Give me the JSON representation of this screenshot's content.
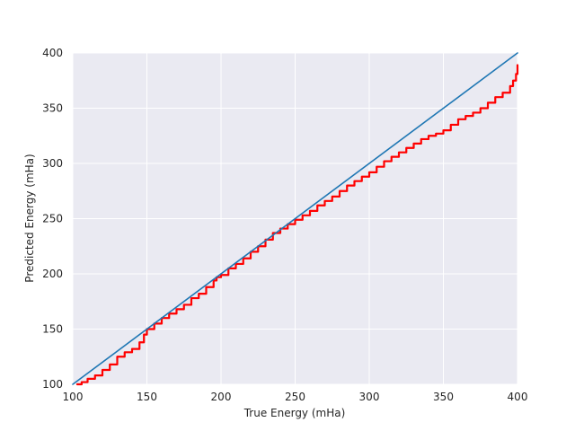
{
  "chart_data": {
    "type": "line",
    "title": "",
    "xlabel": "True Energy (mHa)",
    "ylabel": "Predicted Energy (mHa)",
    "xlim": [
      100,
      400
    ],
    "ylim": [
      100,
      400
    ],
    "xticks": [
      100,
      150,
      200,
      250,
      300,
      350,
      400
    ],
    "yticks": [
      100,
      150,
      200,
      250,
      300,
      350,
      400
    ],
    "grid": true,
    "background_color": "#eaeaf2",
    "series": [
      {
        "color": "#ff0000",
        "style": "step",
        "points": [
          [
            103,
            100
          ],
          [
            106,
            102
          ],
          [
            110,
            105
          ],
          [
            115,
            108
          ],
          [
            120,
            113
          ],
          [
            125,
            118
          ],
          [
            130,
            125
          ],
          [
            135,
            129
          ],
          [
            140,
            132
          ],
          [
            145,
            138
          ],
          [
            148,
            145
          ],
          [
            150,
            150
          ],
          [
            155,
            155
          ],
          [
            160,
            160
          ],
          [
            165,
            164
          ],
          [
            170,
            168
          ],
          [
            175,
            172
          ],
          [
            180,
            178
          ],
          [
            185,
            182
          ],
          [
            190,
            188
          ],
          [
            195,
            194
          ],
          [
            197,
            197
          ],
          [
            200,
            199
          ],
          [
            205,
            205
          ],
          [
            210,
            209
          ],
          [
            215,
            214
          ],
          [
            220,
            220
          ],
          [
            225,
            225
          ],
          [
            230,
            231
          ],
          [
            235,
            237
          ],
          [
            240,
            241
          ],
          [
            245,
            245
          ],
          [
            250,
            249
          ],
          [
            255,
            253
          ],
          [
            260,
            257
          ],
          [
            265,
            262
          ],
          [
            270,
            266
          ],
          [
            275,
            270
          ],
          [
            280,
            275
          ],
          [
            285,
            280
          ],
          [
            290,
            284
          ],
          [
            295,
            288
          ],
          [
            300,
            292
          ],
          [
            305,
            297
          ],
          [
            310,
            302
          ],
          [
            315,
            306
          ],
          [
            320,
            310
          ],
          [
            325,
            314
          ],
          [
            330,
            318
          ],
          [
            335,
            322
          ],
          [
            340,
            325
          ],
          [
            345,
            327
          ],
          [
            350,
            330
          ],
          [
            355,
            335
          ],
          [
            360,
            340
          ],
          [
            365,
            343
          ],
          [
            370,
            346
          ],
          [
            375,
            350
          ],
          [
            380,
            355
          ],
          [
            385,
            360
          ],
          [
            390,
            364
          ],
          [
            395,
            370
          ],
          [
            397,
            375
          ],
          [
            399,
            381
          ],
          [
            400,
            389
          ]
        ]
      },
      {
        "color": "#1f77b4",
        "style": "line",
        "points": [
          [
            100,
            100
          ],
          [
            400,
            400
          ]
        ]
      }
    ]
  }
}
